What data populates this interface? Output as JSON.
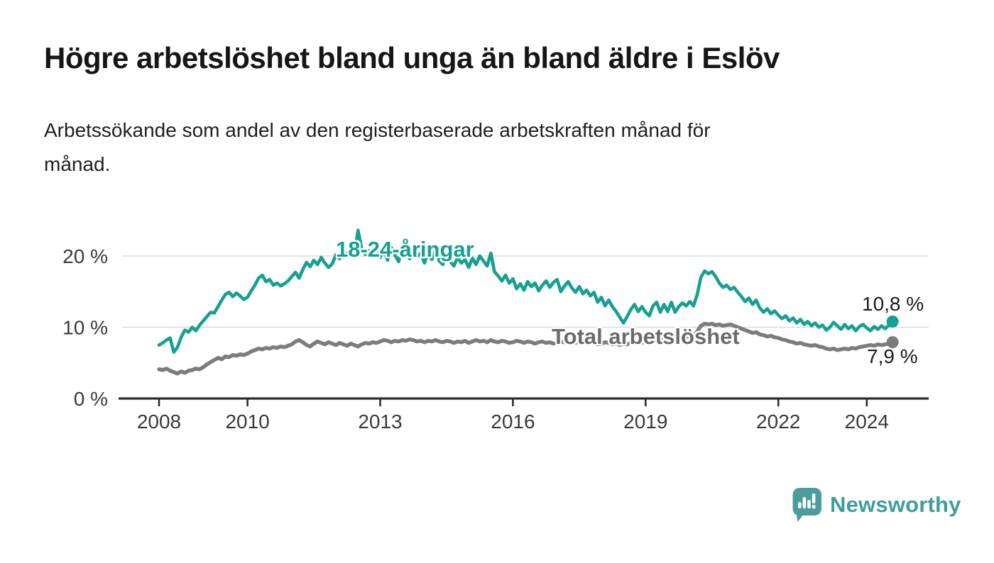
{
  "title": "Högre arbetslöshet bland unga än bland äldre i Eslöv",
  "subtitle": "Arbetssökande som andel av den registerbaserade arbetskraften månad för\nmånad.",
  "branding": {
    "name": "Newsworthy"
  },
  "colors": {
    "background": "#ffffff",
    "title_text": "#161616",
    "body_text": "#1f1f1f",
    "axis": "#2d2d2d",
    "grid": "#dadada",
    "tick_text": "#3a3a3a",
    "young_teal": "#16a091",
    "total_gray": "#7c7c7c",
    "total_label_gray": "#6b6b6b",
    "logo_teal": "#3f9e9c",
    "logo_bubble_teal": "#4a9d9c"
  },
  "chart_data": {
    "type": "line",
    "title": "Högre arbetslöshet bland unga än bland äldre i Eslöv",
    "subtitle": "Arbetssökande som andel av den registerbaserade arbetskraften månad för månad.",
    "unit": "percent of registered labour force",
    "x_frequency": "monthly",
    "x_start": "2008-01",
    "x_end": "2024-08",
    "x_ticks": [
      2008,
      2010,
      2013,
      2016,
      2019,
      2022,
      2024
    ],
    "y_ticks": [
      {
        "value": 0,
        "label": "0 %"
      },
      {
        "value": 10,
        "label": "10 %"
      },
      {
        "value": 20,
        "label": "20 %"
      }
    ],
    "ylim": [
      0,
      24.5
    ],
    "grid": "horizontal-only",
    "legend_position": "inline-labels",
    "series": [
      {
        "name": "18-24-åringar",
        "color": "#16a091",
        "end_label": "10,8 %",
        "end_value": 10.8,
        "values": [
          7.5,
          7.8,
          8.2,
          8.5,
          6.5,
          7.2,
          8.6,
          9.6,
          9.3,
          10.0,
          9.5,
          10.3,
          10.9,
          11.5,
          12.1,
          12.0,
          12.9,
          13.8,
          14.6,
          14.9,
          14.3,
          14.8,
          14.4,
          13.9,
          14.2,
          15.1,
          15.9,
          16.9,
          17.3,
          16.4,
          16.7,
          15.9,
          16.2,
          15.8,
          16.1,
          16.5,
          17.1,
          17.7,
          16.9,
          18.1,
          19.1,
          18.5,
          19.4,
          18.8,
          19.8,
          19.0,
          18.4,
          18.9,
          20.2,
          19.6,
          20.8,
          20.0,
          21.0,
          20.3,
          23.6,
          21.0,
          20.2,
          20.8,
          20.0,
          20.5,
          19.8,
          20.9,
          19.4,
          21.2,
          20.1,
          19.2,
          21.4,
          20.3,
          19.6,
          20.8,
          19.9,
          20.4,
          19.0,
          20.5,
          19.5,
          20.9,
          19.3,
          18.8,
          20.1,
          19.2,
          18.6,
          19.8,
          19.0,
          19.5,
          18.4,
          19.7,
          18.8,
          20.0,
          19.3,
          18.6,
          20.4,
          17.8,
          17.2,
          16.5,
          17.3,
          16.2,
          16.8,
          15.4,
          16.1,
          15.2,
          16.4,
          15.7,
          16.2,
          15.1,
          15.9,
          16.5,
          15.6,
          16.3,
          16.7,
          15.0,
          15.8,
          16.4,
          15.5,
          14.9,
          15.7,
          14.7,
          15.2,
          14.4,
          14.9,
          13.5,
          14.2,
          13.0,
          13.8,
          12.9,
          12.2,
          11.4,
          10.6,
          11.5,
          12.5,
          13.2,
          12.2,
          12.9,
          12.1,
          11.6,
          13.0,
          13.5,
          12.1,
          13.2,
          12.2,
          13.5,
          12.1,
          12.9,
          13.4,
          13.0,
          13.6,
          13.0,
          14.6,
          17.0,
          17.9,
          17.5,
          17.8,
          17.1,
          16.2,
          15.6,
          15.9,
          15.3,
          15.6,
          14.9,
          14.3,
          13.6,
          14.1,
          13.2,
          13.8,
          12.7,
          12.1,
          12.6,
          11.9,
          12.3,
          11.7,
          11.2,
          11.6,
          10.9,
          11.3,
          10.6,
          11.1,
          10.4,
          10.8,
          10.2,
          10.6,
          10.0,
          10.3,
          9.6,
          10.0,
          10.7,
          10.2,
          9.7,
          10.4,
          9.8,
          10.2,
          9.5,
          10.1,
          10.4,
          9.9,
          9.5,
          10.1,
          9.7,
          10.2,
          9.8,
          10.3,
          10.8
        ]
      },
      {
        "name": "Total arbetslöshet",
        "color": "#7c7c7c",
        "end_label": "7,9 %",
        "end_value": 7.9,
        "values": [
          4.1,
          4.0,
          4.2,
          3.9,
          3.7,
          3.5,
          3.8,
          3.6,
          3.9,
          4.0,
          4.2,
          4.1,
          4.4,
          4.8,
          5.1,
          5.4,
          5.7,
          5.5,
          5.9,
          5.8,
          6.1,
          6.0,
          6.2,
          6.1,
          6.3,
          6.6,
          6.8,
          7.0,
          6.9,
          7.1,
          7.0,
          7.2,
          7.1,
          7.3,
          7.2,
          7.4,
          7.6,
          8.0,
          8.2,
          7.9,
          7.5,
          7.3,
          7.7,
          8.0,
          7.8,
          7.6,
          7.9,
          7.7,
          7.5,
          7.8,
          7.6,
          7.4,
          7.7,
          7.5,
          7.3,
          7.6,
          7.8,
          7.7,
          7.9,
          7.8,
          8.0,
          8.2,
          8.1,
          7.9,
          8.1,
          8.0,
          8.2,
          8.1,
          8.3,
          8.2,
          8.0,
          8.1,
          7.9,
          8.1,
          8.0,
          8.2,
          8.0,
          7.9,
          8.1,
          8.0,
          7.8,
          8.0,
          7.9,
          8.1,
          7.8,
          8.0,
          8.2,
          8.0,
          8.1,
          7.9,
          8.2,
          8.0,
          7.9,
          8.1,
          8.0,
          7.8,
          7.9,
          8.1,
          8.0,
          7.8,
          8.0,
          7.9,
          7.7,
          7.9,
          8.0,
          7.8,
          7.9,
          7.7,
          7.8,
          8.0,
          7.9,
          7.7,
          7.9,
          7.8,
          8.0,
          7.8,
          7.7,
          7.9,
          7.8,
          7.6,
          7.7,
          7.9,
          7.8,
          7.6,
          7.7,
          7.5,
          7.7,
          7.6,
          7.8,
          7.7,
          7.9,
          7.8,
          8.0,
          8.1,
          8.0,
          8.2,
          8.1,
          8.3,
          8.2,
          8.4,
          8.3,
          8.5,
          8.4,
          8.6,
          8.7,
          8.9,
          9.4,
          10.2,
          10.5,
          10.4,
          10.5,
          10.3,
          10.4,
          10.2,
          10.3,
          10.4,
          10.2,
          10.0,
          9.8,
          9.6,
          9.4,
          9.2,
          9.3,
          9.0,
          8.9,
          8.7,
          8.8,
          8.6,
          8.5,
          8.3,
          8.2,
          8.0,
          7.9,
          7.7,
          7.8,
          7.6,
          7.5,
          7.4,
          7.5,
          7.3,
          7.2,
          7.0,
          6.9,
          7.0,
          6.8,
          6.9,
          7.0,
          6.9,
          7.1,
          7.0,
          7.2,
          7.3,
          7.4,
          7.5,
          7.4,
          7.6,
          7.5,
          7.6,
          7.7,
          7.9
        ]
      }
    ]
  }
}
